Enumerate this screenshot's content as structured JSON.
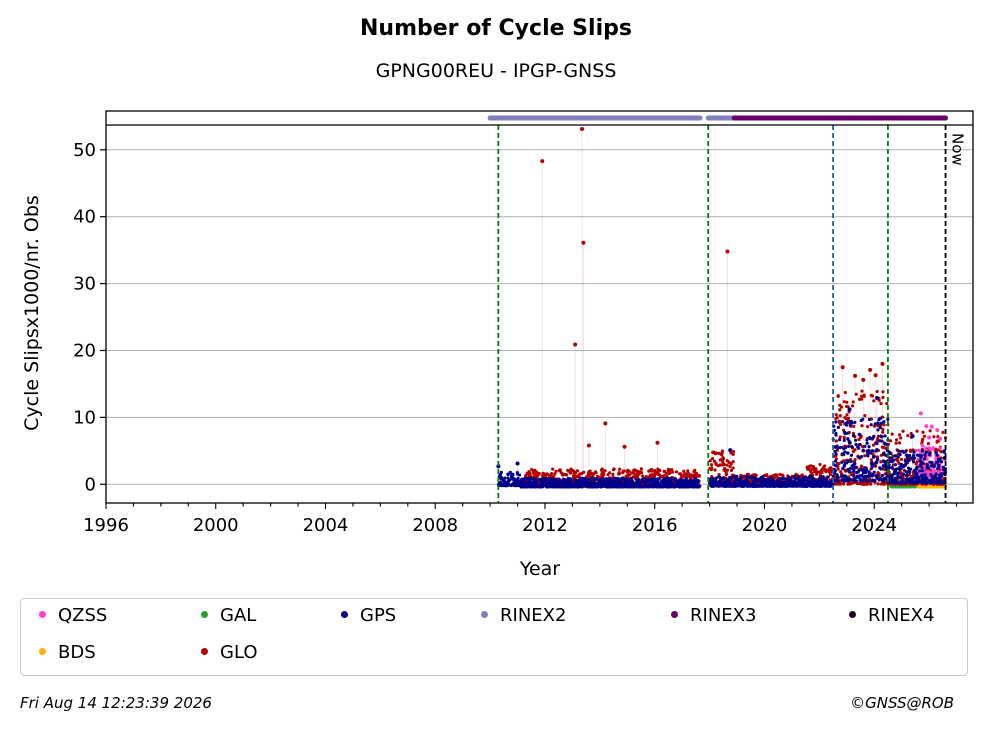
{
  "chart_data": {
    "type": "scatter",
    "title": "Number of Cycle Slips",
    "subtitle": "GPNG00REU - IPGP-GNSS",
    "xlabel": "Year",
    "ylabel": "Cycle Slipsx1000/nr. Obs",
    "xlim": [
      1996,
      2027.6
    ],
    "ylim": [
      -2.8,
      55.8
    ],
    "xticks": [
      1996,
      2000,
      2004,
      2008,
      2012,
      2016,
      2020,
      2024
    ],
    "yticks": [
      0,
      10,
      20,
      30,
      40,
      50
    ],
    "grid": "horizontal",
    "legend_position": "bottom",
    "now_label": "Now",
    "now_year": 2026.6,
    "vlines": [
      {
        "x": 2010.3,
        "color": "#008000",
        "style": "dashed"
      },
      {
        "x": 2017.95,
        "color": "#008000",
        "style": "dashed"
      },
      {
        "x": 2022.5,
        "color": "#1f5fad",
        "style": "dashed"
      },
      {
        "x": 2024.5,
        "color": "#008000",
        "style": "dashed"
      },
      {
        "x": 2026.6,
        "color": "#000000",
        "style": "dashed"
      }
    ],
    "rinex_bars": [
      {
        "name": "RINEX2",
        "from": 2010.0,
        "to": 2017.65,
        "color": "#7f7fbf"
      },
      {
        "name": "RINEX2",
        "from": 2017.95,
        "to": 2018.9,
        "color": "#7f7fbf"
      },
      {
        "name": "RINEX3",
        "from": 2018.9,
        "to": 2026.6,
        "color": "#660066"
      }
    ],
    "series": [
      {
        "name": "GLO",
        "color": "#b30000",
        "points": [
          [
            2011.9,
            48.3
          ],
          [
            2013.35,
            53.1
          ],
          [
            2013.4,
            36.1
          ],
          [
            2013.1,
            20.9
          ],
          [
            2018.65,
            34.8
          ],
          [
            2014.2,
            9.1
          ],
          [
            2013.6,
            5.8
          ],
          [
            2014.9,
            5.6
          ],
          [
            2016.1,
            6.2
          ],
          [
            2022.85,
            17.5
          ],
          [
            2023.3,
            16.2
          ],
          [
            2023.85,
            17.1
          ],
          [
            2024.3,
            18.0
          ],
          [
            2023.6,
            15.6
          ],
          [
            2024.05,
            16.3
          ]
        ],
        "bands": [
          {
            "from": 2011.2,
            "to": 2017.65,
            "min": -0.3,
            "max": 2.3
          },
          {
            "from": 2018.0,
            "to": 2018.9,
            "min": -0.3,
            "max": 5.0
          },
          {
            "from": 2018.9,
            "to": 2021.5,
            "min": -0.2,
            "max": 1.5
          },
          {
            "from": 2021.5,
            "to": 2022.5,
            "min": -0.2,
            "max": 3.0
          },
          {
            "from": 2022.5,
            "to": 2024.5,
            "min": 0.0,
            "max": 14.0
          },
          {
            "from": 2024.5,
            "to": 2026.6,
            "min": 0.0,
            "max": 8.0
          }
        ]
      },
      {
        "name": "GPS",
        "color": "#00008b",
        "points": [
          [
            2010.3,
            2.7
          ],
          [
            2011.0,
            3.1
          ],
          [
            2018.75,
            5.1
          ],
          [
            2024.1,
            12.9
          ],
          [
            2023.1,
            11.2
          ],
          [
            2025.4,
            7.2
          ]
        ],
        "bands": [
          {
            "from": 2010.3,
            "to": 2011.1,
            "min": -0.2,
            "max": 1.8
          },
          {
            "from": 2011.1,
            "to": 2017.65,
            "min": -0.4,
            "max": 0.9
          },
          {
            "from": 2018.0,
            "to": 2022.5,
            "min": -0.3,
            "max": 1.2
          },
          {
            "from": 2022.5,
            "to": 2024.5,
            "min": 0.5,
            "max": 10.0
          },
          {
            "from": 2024.5,
            "to": 2026.6,
            "min": 0.2,
            "max": 5.0
          }
        ]
      },
      {
        "name": "QZSS",
        "color": "#ff44cc",
        "points": [
          [
            2025.7,
            10.6
          ],
          [
            2025.9,
            8.7
          ],
          [
            2026.1,
            8.6
          ],
          [
            2026.3,
            8.1
          ],
          [
            2026.0,
            7.0
          ],
          [
            2026.4,
            6.8
          ]
        ],
        "bands": [
          {
            "from": 2025.5,
            "to": 2026.5,
            "min": 1.0,
            "max": 6.0
          }
        ]
      },
      {
        "name": "GAL",
        "color": "#2ca02c",
        "points": [],
        "bands": [
          {
            "from": 2024.6,
            "to": 2026.6,
            "min": -0.4,
            "max": 0.2
          }
        ]
      },
      {
        "name": "BDS",
        "color": "#ffb000",
        "points": [],
        "bands": [
          {
            "from": 2025.6,
            "to": 2026.6,
            "min": -0.4,
            "max": 0.0
          }
        ]
      }
    ]
  },
  "legend": {
    "items": [
      {
        "label": "QZSS",
        "color": "#ff44cc"
      },
      {
        "label": "GAL",
        "color": "#2ca02c"
      },
      {
        "label": "GPS",
        "color": "#00008b"
      },
      {
        "label": "RINEX2",
        "color": "#7f7fbf"
      },
      {
        "label": "RINEX3",
        "color": "#660066"
      },
      {
        "label": "RINEX4",
        "color": "#1a0026"
      },
      {
        "label": "BDS",
        "color": "#ffb000"
      },
      {
        "label": "GLO",
        "color": "#b30000"
      }
    ]
  },
  "footer": {
    "date": "Fri Aug 14 12:23:39 2026",
    "credit": "©GNSS@ROB"
  }
}
